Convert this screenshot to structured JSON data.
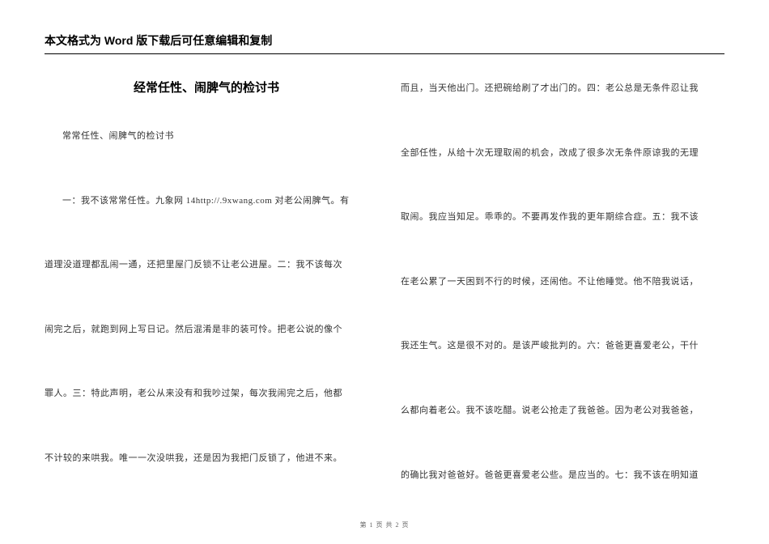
{
  "header": {
    "text": "本文格式为 Word 版下载后可任意编辑和复制"
  },
  "document": {
    "title": "经常任性、闹脾气的检讨书",
    "left_column": {
      "p1": "常常任性、闹脾气的检讨书",
      "p2": "一：我不该常常任性。九象网 14http://.9xwang.com 对老公闹脾气。有",
      "p3": "道理没道理都乱闹一通，还把里屋门反锁不让老公进屋。二：我不该每次",
      "p4": "闹完之后，就跑到网上写日记。然后混淆是非的装可怜。把老公说的像个",
      "p5": "罪人。三：特此声明，老公从来没有和我吵过架，每次我闹完之后，他都",
      "p6": "不计较的来哄我。唯一一次没哄我，还是因为我把门反锁了，他进不来。"
    },
    "right_column": {
      "p1": "而且，当天他出门。还把碗给刷了才出门的。四：老公总是无条件忍让我",
      "p2": "全部任性，从给十次无理取闹的机会，改成了很多次无条件原谅我的无理",
      "p3": "取闹。我应当知足。乖乖的。不要再发作我的更年期综合症。五：我不该",
      "p4": "在老公累了一天困到不行的时候，还闹他。不让他睡觉。他不陪我说话，",
      "p5": "我还生气。这是很不对的。是该严峻批判的。六：爸爸更喜爱老公，干什",
      "p6": "么都向着老公。我不该吃醋。说老公抢走了我爸爸。因为老公对我爸爸，",
      "p7": "的确比我对爸爸好。爸爸更喜爱老公些。是应当的。七：我不该在明知道"
    }
  },
  "footer": {
    "text": "第 1 页 共 2 页"
  }
}
